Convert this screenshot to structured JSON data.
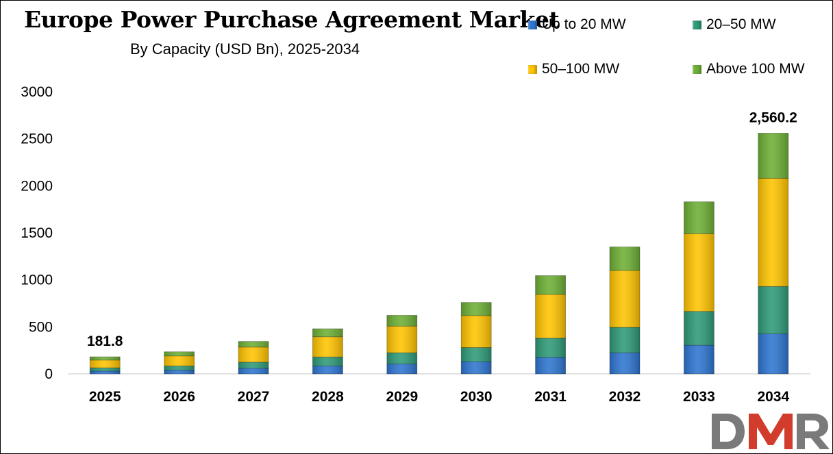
{
  "title": "Europe Power Purchase Agreement Market",
  "subtitle": "By Capacity (USD Bn), 2025-2034",
  "logo_text": "DMR",
  "chart_data": {
    "type": "bar",
    "stacked": true,
    "categories": [
      "2025",
      "2026",
      "2027",
      "2028",
      "2029",
      "2030",
      "2031",
      "2032",
      "2033",
      "2034"
    ],
    "series": [
      {
        "name": "Up to 20 MW",
        "color": "#2E75D0",
        "values": [
          30,
          40,
          60,
          85,
          105,
          130,
          175,
          225,
          305,
          425
        ]
      },
      {
        "name": "20–50 MW",
        "color": "#2E9A78",
        "values": [
          35,
          45,
          65,
          95,
          120,
          150,
          205,
          270,
          360,
          505
        ]
      },
      {
        "name": "50–100 MW",
        "color": "#FFC400",
        "values": [
          82,
          106,
          160,
          215,
          283,
          340,
          465,
          605,
          825,
          1150
        ]
      },
      {
        "name": "Above 100 MW",
        "color": "#6DAF35",
        "values": [
          34.8,
          44,
          60,
          85,
          115,
          140,
          200,
          250,
          340,
          480.2
        ]
      }
    ],
    "data_labels": [
      {
        "category": "2025",
        "text": "181.8"
      },
      {
        "category": "2034",
        "text": "2,560.2"
      }
    ],
    "ylim": [
      0,
      3000
    ],
    "yticks": [
      0,
      500,
      1000,
      1500,
      2000,
      2500,
      3000
    ],
    "grid": false,
    "legend": "top-right",
    "xlabel": "",
    "ylabel": ""
  }
}
